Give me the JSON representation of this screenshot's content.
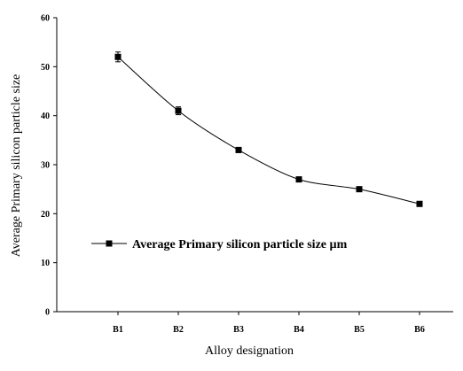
{
  "chart_data": {
    "type": "line",
    "categories": [
      "B1",
      "B2",
      "B3",
      "B4",
      "B5",
      "B6"
    ],
    "series": [
      {
        "name": "Average Primary silicon particle size µm",
        "values": [
          52,
          41,
          33,
          27,
          25,
          22
        ],
        "errors": [
          1.0,
          0.8,
          0.5,
          0.3,
          0.3,
          0.3
        ],
        "color": "#000000",
        "marker": "square"
      }
    ],
    "xlabel": "Alloy designation",
    "ylabel": "Average Primary silicon particle size",
    "ylim": [
      0,
      60
    ],
    "yticks": [
      0,
      10,
      20,
      30,
      40,
      50,
      60
    ],
    "grid": false,
    "legend_position": "center-left"
  }
}
